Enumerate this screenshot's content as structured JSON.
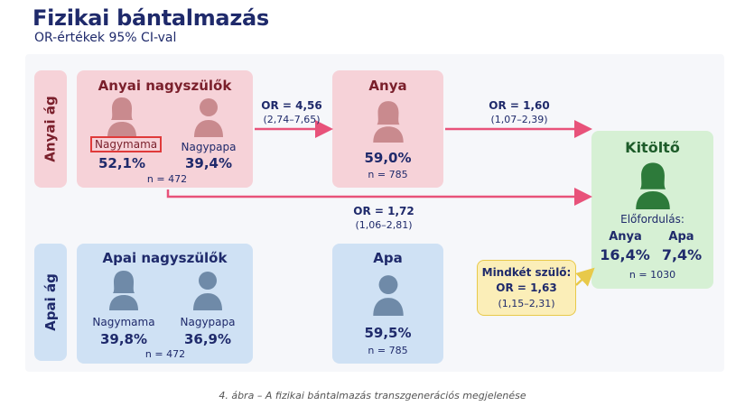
{
  "title": "Fizikai bántalmazás",
  "subtitle": "OR-értékek 95% CI-val",
  "maternal": {
    "side_label": "Anyai ág",
    "grandparents": {
      "header": "Anyai nagyszülők",
      "grandmother": {
        "label": "Nagymama",
        "value": "52,1%"
      },
      "grandfather": {
        "label": "Nagypapa",
        "value": "39,4%"
      },
      "n": "n = 472"
    },
    "parent": {
      "header": "Anya",
      "value": "59,0%",
      "n": "n = 785"
    }
  },
  "paternal": {
    "side_label": "Apai ág",
    "grandparents": {
      "header": "Apai nagyszülők",
      "grandmother": {
        "label": "Nagymama",
        "value": "39,8%"
      },
      "grandfather": {
        "label": "Nagypapa",
        "value": "36,9%"
      },
      "n": "n = 472"
    },
    "parent": {
      "header": "Apa",
      "value": "59,5%",
      "n": "n = 785"
    }
  },
  "respondent": {
    "header": "Kitöltő",
    "prevalence_label": "Előfordulás:",
    "mother": {
      "label": "Anya",
      "value": "16,4%"
    },
    "father": {
      "label": "Apa",
      "value": "7,4%"
    },
    "n": "n = 1030"
  },
  "arrows": {
    "gp_to_mother": {
      "or": "OR = 4,56",
      "ci": "(2,74–7,65)"
    },
    "mother_to_resp": {
      "or": "OR = 1,60",
      "ci": "(1,07–2,39)"
    },
    "gp_to_resp": {
      "or": "OR = 1,72",
      "ci": "(1,06–2,81)"
    },
    "both_parents": {
      "label": "Mindkét szülő:",
      "or": "OR = 1,63",
      "ci": "(1,15–2,31)"
    }
  },
  "caption": "4. ábra – A fizikai bántalmazás transzgenerációs megjelenése",
  "colors": {
    "pink": "#f6d2d8",
    "blue": "#cfe1f4",
    "green": "#d6f0d4",
    "yellow": "#fbeeb8",
    "arrow_pink": "#e8527a",
    "arrow_yellow": "#e8c94a",
    "icon_pink": "#c98a8e",
    "icon_blue": "#6f8aa8",
    "icon_green": "#2d7a3a",
    "navy": "#1f2a6b",
    "maroon": "#7a1f2b"
  }
}
